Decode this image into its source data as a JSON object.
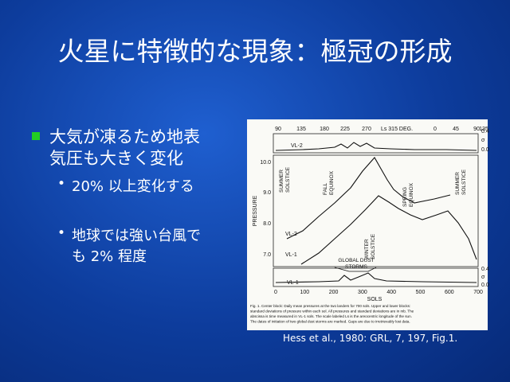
{
  "title": "火星に特徴的な現象：極冠の形成",
  "bullets": [
    {
      "lines": [
        "大気が凍るため地表",
        "気圧も大きく変化"
      ],
      "sub": [
        {
          "lines": [
            "20% 以上変化する"
          ]
        },
        {
          "lines": [
            "地球では強い台風で",
            "も 2% 程度"
          ]
        }
      ]
    }
  ],
  "figure": {
    "ls_labels": [
      "90",
      "135",
      "180",
      "225",
      "270",
      "Ls 315 DEG.",
      "0",
      "45",
      "90",
      "135"
    ],
    "pressure_labels": [
      "10.0",
      "9.0",
      "8.0",
      "7.0"
    ],
    "pressure_axis": "PRESSURE",
    "sol_labels": [
      "0",
      "100",
      "200",
      "300",
      "400",
      "500",
      "600",
      "700"
    ],
    "sol_axis": "SOLS",
    "sigma_top": [
      "0.4",
      "σ",
      "0.0"
    ],
    "sigma_bottom": [
      "0.4",
      "σ",
      "0.0"
    ],
    "series_labels": [
      "VL-2",
      "VL-2",
      "VL-1",
      "VL-1"
    ],
    "seasons": [
      {
        "lines": [
          "SUMMER",
          "SOLSTICE"
        ]
      },
      {
        "lines": [
          "FALL",
          "EQUINOX"
        ]
      },
      {
        "lines": [
          "WINTER",
          "SOLSTICE"
        ]
      },
      {
        "lines": [
          "SPRING",
          "EQUINOX"
        ]
      },
      {
        "lines": [
          "SUMMER",
          "SOLSTICE"
        ]
      }
    ],
    "storm_label": {
      "lines": [
        "GLOBAL DUST",
        "STORMS"
      ]
    },
    "caption": [
      "Fig. 1.  Center block: Daily mean pressures at the two landers for 700 sols.  Upper and lower blocks:",
      "standard deviations of pressure within each sol.  All pressures and standard deviations are in mb.  The",
      "abscissa is time measured in VL-1 sols.  The scale labeled Ls is the areocentric longitude of the sun.",
      "The dates of initiation of two global dust storms are marked.  Gaps are due to irretrievably lost data."
    ]
  },
  "credit": "Hess et al., 1980: GRL, 7, 197, Fig.1."
}
